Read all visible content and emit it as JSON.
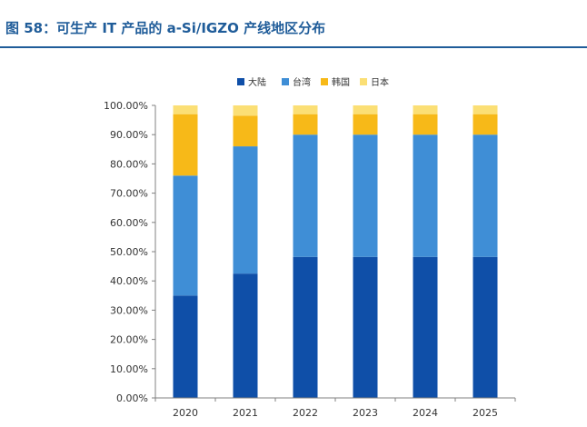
{
  "figure_title": "图 58：可生产 IT 产品的 a-Si/IGZO 产线地区分布",
  "chart_data": {
    "type": "bar",
    "stacked": true,
    "categories": [
      "2020",
      "2021",
      "2022",
      "2023",
      "2024",
      "2025"
    ],
    "series": [
      {
        "name": "大陆",
        "color": "#0f4fa8",
        "values": [
          35,
          42.5,
          48.2,
          48.2,
          48.2,
          48.2
        ]
      },
      {
        "name": "台湾",
        "color": "#3f8ed6",
        "values": [
          41,
          43.5,
          41.8,
          41.8,
          41.8,
          41.8
        ]
      },
      {
        "name": "韩国",
        "color": "#f7b918",
        "values": [
          21,
          10.5,
          7,
          7,
          7,
          7
        ]
      },
      {
        "name": "日本",
        "color": "#fbdf75",
        "values": [
          3,
          3.5,
          3,
          3,
          3,
          3
        ]
      }
    ],
    "yticks": [
      "0.00%",
      "10.00%",
      "20.00%",
      "30.00%",
      "40.00%",
      "50.00%",
      "60.00%",
      "70.00%",
      "80.00%",
      "90.00%",
      "100.00%"
    ],
    "ylim": [
      0,
      100
    ],
    "legend_position": "top",
    "grid": false
  }
}
